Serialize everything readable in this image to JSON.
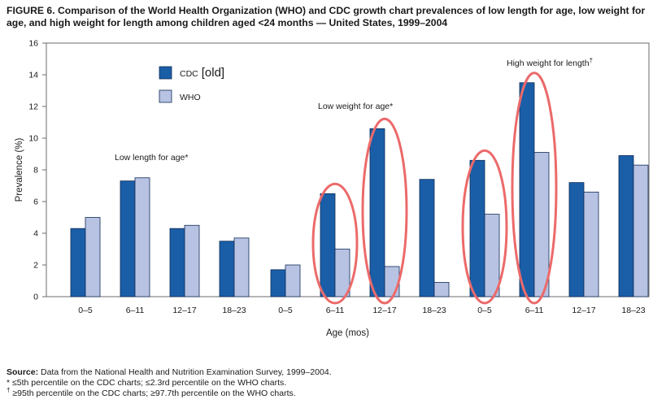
{
  "figure": {
    "title": "FIGURE 6. Comparison of the World Health Organization (WHO) and CDC growth chart prevalences of low length for age, low weight for age, and high weight for length among children aged <24 months — United States, 1999–2004"
  },
  "chart_data": {
    "type": "bar",
    "ylabel": "Prevalence (%)",
    "xlabel": "Age (mos)",
    "ylim": [
      0,
      16
    ],
    "yticks": [
      "0",
      "2",
      "4",
      "6",
      "8",
      "10",
      "12",
      "14",
      "16"
    ],
    "grid": false,
    "legend_position": "top-left",
    "colors": {
      "CDC": "#1b5ea8",
      "WHO": "#b8c3e3",
      "highlight": "#ec6a6a"
    },
    "series": [
      {
        "name": "CDC [old]",
        "legend_base": "CDC",
        "legend_note": "[old]"
      },
      {
        "name": "WHO",
        "legend_base": "WHO",
        "legend_note": ""
      }
    ],
    "groups": [
      {
        "label": "Low length for age*",
        "categories": [
          "0–5",
          "6–11",
          "12–17",
          "18–23"
        ],
        "cdc": [
          4.3,
          7.3,
          4.3,
          3.5
        ],
        "who": [
          5.0,
          7.5,
          4.5,
          3.7
        ]
      },
      {
        "label": "Low weight for age*",
        "categories": [
          "0–5",
          "6–11",
          "12–17",
          "18–23"
        ],
        "cdc": [
          1.7,
          6.5,
          10.6,
          7.4
        ],
        "who": [
          2.0,
          3.0,
          1.9,
          0.9
        ]
      },
      {
        "label": "High weight for length†",
        "categories": [
          "0–5",
          "6–11",
          "12–17",
          "18–23"
        ],
        "cdc": [
          8.6,
          13.5,
          7.2,
          8.9
        ],
        "who": [
          5.2,
          9.1,
          6.6,
          8.3
        ]
      }
    ],
    "highlighted": [
      {
        "group": 1,
        "category": "6–11"
      },
      {
        "group": 1,
        "category": "12–17"
      },
      {
        "group": 2,
        "category": "0–5"
      },
      {
        "group": 2,
        "category": "6–11"
      }
    ]
  },
  "footnotes": {
    "source_label": "Source:",
    "source_text": " Data from the National Health and Nutrition Examination Survey, 1999–2004.",
    "note1": "* ≤5th percentile on the CDC charts; ≤2.3rd percentile on the WHO charts.",
    "note2_symbol": "†",
    "note2_text": " ≥95th percentile on the CDC charts; ≥97.7th percentile on the WHO charts."
  }
}
